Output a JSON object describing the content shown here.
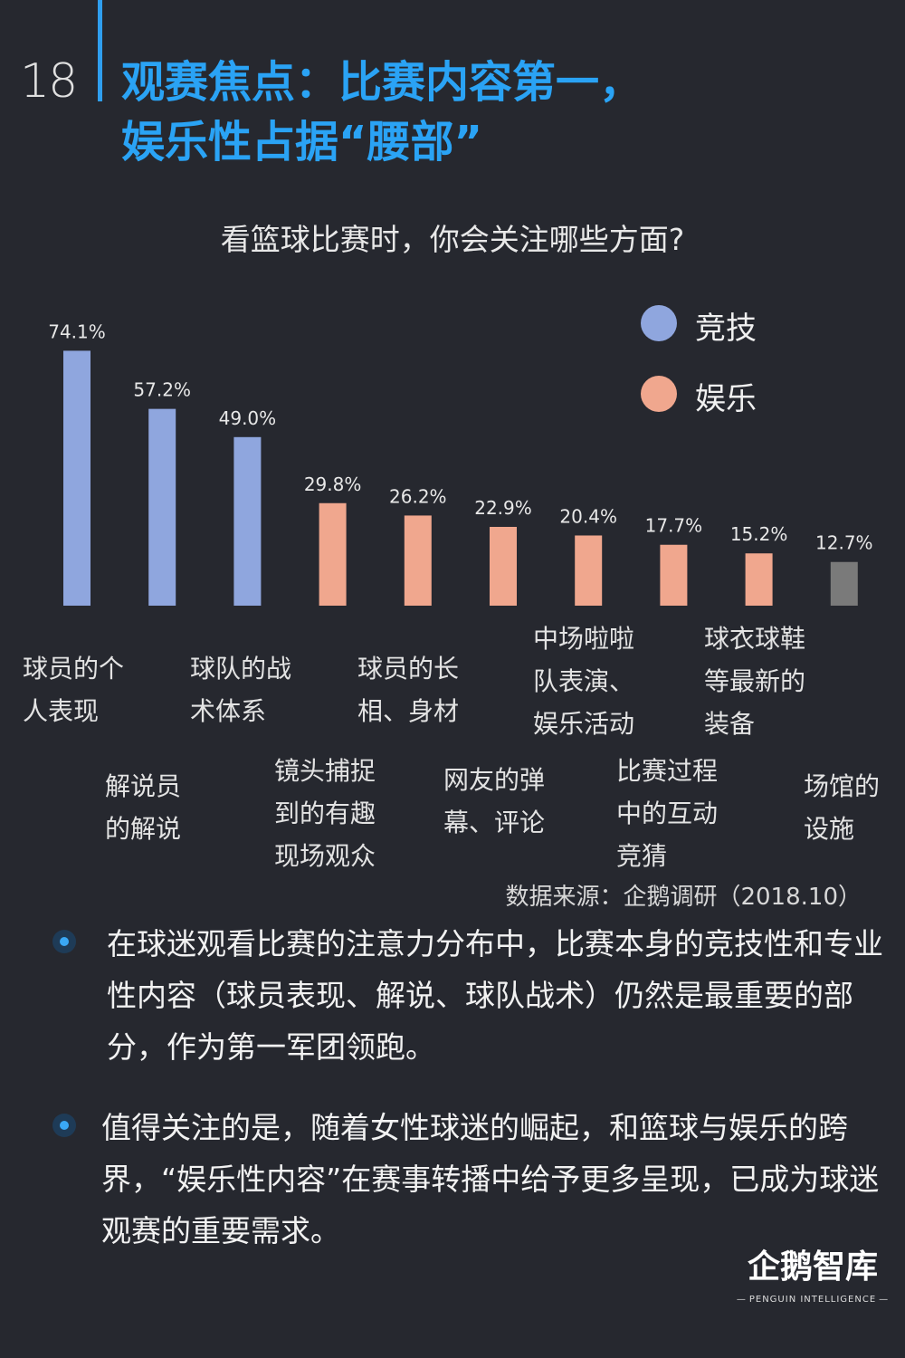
{
  "page_number": "18",
  "title": [
    "观赛焦点：比赛内容第一，",
    "娱乐性占据“腰部”"
  ],
  "colors": {
    "accent": "#2aa3f5",
    "competitive": "#8fa6de",
    "entertainment": "#f0a78e",
    "other": "#7a7a7a"
  },
  "legend": [
    {
      "label": "竞技",
      "color": "#8fa6de"
    },
    {
      "label": "娱乐",
      "color": "#f0a78e"
    }
  ],
  "chart_data": {
    "type": "bar",
    "title": "看篮球比赛时，你会关注哪些方面?",
    "categories": [
      "球员的个人表现",
      "解说员的解说",
      "球队的战术体系",
      "镜头捕捉到的有趣现场观众",
      "球员的长相、身材",
      "网友的弹幕、评论",
      "中场啦啦队表演、娱乐活动",
      "比赛过程中的互动竞猜",
      "球衣球鞋等最新的装备",
      "场馆的设施"
    ],
    "values": [
      74.1,
      57.2,
      49.0,
      29.8,
      26.2,
      22.9,
      20.4,
      17.7,
      15.2,
      12.7
    ],
    "value_labels": [
      "74.1%",
      "57.2%",
      "49.0%",
      "29.8%",
      "26.2%",
      "22.9%",
      "20.4%",
      "17.7%",
      "15.2%",
      "12.7%"
    ],
    "groups": [
      "竞技",
      "竞技",
      "竞技",
      "娱乐",
      "娱乐",
      "娱乐",
      "娱乐",
      "娱乐",
      "娱乐",
      "other"
    ],
    "unit": "%",
    "ylim": [
      0,
      80
    ],
    "legend_position": "top-right",
    "grid": false
  },
  "category_labels": [
    [
      "球员的个",
      "人表现"
    ],
    [
      "解说员",
      "的解说"
    ],
    [
      "球队的战",
      "术体系"
    ],
    [
      "镜头捕捉",
      "到的有趣",
      "现场观众"
    ],
    [
      "球员的长",
      "相、身材"
    ],
    [
      "网友的弹",
      "幕、评论"
    ],
    [
      "中场啦啦",
      "队表演、",
      "娱乐活动"
    ],
    [
      "比赛过程",
      "中的互动",
      "竞猜"
    ],
    [
      "球衣球鞋",
      "等最新的",
      "装备"
    ],
    [
      "场馆的",
      "设施"
    ]
  ],
  "source": "数据来源：企鹅调研（2018.10）",
  "paragraphs": [
    "在球迷观看比赛的注意力分布中，比赛本身的竞技性和专业性内容（球员表现、解说、球队战术）仍然是最重要的部分，作为第一军团领跑。",
    "值得关注的是，随着女性球迷的崛起，和篮球与娱乐的跨界，“娱乐性内容”在赛事转播中给予更多呈现，已成为球迷观赛的重要需求。"
  ],
  "logo": {
    "main": "企鹅智库",
    "sub": "PENGUIN INTELLIGENCE"
  }
}
